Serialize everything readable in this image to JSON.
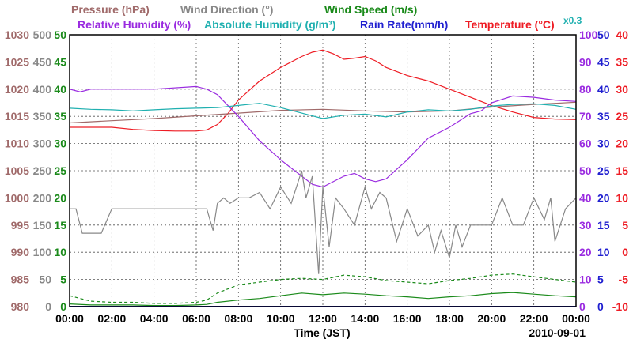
{
  "chart_data": {
    "type": "line",
    "date": "2010-09-01",
    "xlabel": "Time (JST)",
    "x_ticks": [
      "00:00",
      "02:00",
      "04:00",
      "06:00",
      "08:00",
      "10:00",
      "12:00",
      "14:00",
      "16:00",
      "18:00",
      "20:00",
      "22:00",
      "00:00"
    ],
    "x_range_hours": [
      0,
      24
    ],
    "grid": true,
    "axes": [
      {
        "id": "pressure",
        "label": "Pressure (hPa)",
        "color": "#a06a6a",
        "range": [
          980,
          1030
        ],
        "ticks": [
          "1030",
          "1025",
          "1020",
          "1015",
          "1010",
          "1005",
          "1000",
          "995",
          "990",
          "985",
          "980"
        ]
      },
      {
        "id": "wind_direction",
        "label": "Wind Direction (°)",
        "color": "#888888",
        "range": [
          0,
          500
        ],
        "ticks": [
          "500",
          "450",
          "400",
          "350",
          "300",
          "250",
          "200",
          "150",
          "100",
          "50",
          "0"
        ]
      },
      {
        "id": "wind_speed",
        "label": "Wind Speed (m/s)",
        "color": "#1a8a1a",
        "range": [
          0,
          50
        ],
        "ticks": [
          "50",
          "45",
          "40",
          "35",
          "30",
          "25",
          "20",
          "15",
          "10",
          "5",
          "0"
        ]
      },
      {
        "id": "relative_humidity",
        "label": "Relative Humidity (%)",
        "color": "#9a2be0",
        "range": [
          0,
          100
        ],
        "ticks": [
          "100",
          "90",
          "80",
          "70",
          "60",
          "50",
          "40",
          "30",
          "20",
          "10",
          "0"
        ]
      },
      {
        "id": "absolute_humidity",
        "label": "Absolute Humidity (g/m³)",
        "color": "#20b0b0",
        "scale_note": "x0.3",
        "range": [
          0,
          50
        ],
        "ticks": [
          "50",
          "45",
          "40",
          "35",
          "30",
          "25",
          "20",
          "15",
          "10",
          "5",
          "0"
        ]
      },
      {
        "id": "rain_rate",
        "label": "Rain Rate(mm/h)",
        "color": "#2020d0",
        "range": [
          0,
          50
        ],
        "ticks": [
          "50",
          "45",
          "40",
          "35",
          "30",
          "25",
          "20",
          "15",
          "10",
          "5",
          "0"
        ]
      },
      {
        "id": "temperature",
        "label": "Temperature (°C)",
        "color": "#ee1c24",
        "range": [
          -10,
          40
        ],
        "ticks": [
          "40",
          "35",
          "30",
          "25",
          "20",
          "15",
          "10",
          "5",
          "0",
          "-5",
          "-10"
        ]
      }
    ],
    "series": [
      {
        "name": "Temperature",
        "axis": "temperature",
        "color": "#ee1c24",
        "x": [
          0,
          1,
          2,
          3,
          4,
          5,
          6,
          6.5,
          7,
          7.5,
          8,
          9,
          10,
          11,
          11.5,
          12,
          12.5,
          13,
          13.5,
          14,
          14.5,
          15,
          16,
          17,
          18,
          19,
          20,
          21,
          22,
          23,
          24
        ],
        "y": [
          23,
          23,
          23,
          22.6,
          22.4,
          22.3,
          22.3,
          22.5,
          23.5,
          25.5,
          28,
          31.5,
          34,
          36,
          36.8,
          37.2,
          36.5,
          35.5,
          35.7,
          36,
          35.2,
          34,
          32.5,
          31.5,
          30,
          28.5,
          27,
          25.8,
          24.8,
          24.5,
          24.4
        ]
      },
      {
        "name": "Pressure",
        "axis": "pressure",
        "color": "#a06a6a",
        "x": [
          0,
          2,
          4,
          6,
          8,
          10,
          12,
          14,
          16,
          18,
          20,
          22,
          24
        ],
        "y": [
          1013.8,
          1014.2,
          1014.6,
          1015.1,
          1015.6,
          1016.1,
          1016.3,
          1016.0,
          1015.8,
          1016.0,
          1016.7,
          1017.2,
          1017.6
        ]
      },
      {
        "name": "Relative Humidity",
        "axis": "relative_humidity",
        "color": "#9a2be0",
        "x": [
          0,
          0.5,
          1,
          2,
          4,
          6,
          6.5,
          7,
          8,
          9,
          10,
          10.5,
          11,
          11.5,
          12,
          13,
          13.5,
          14,
          14.5,
          15,
          16,
          17,
          18,
          19,
          19.5,
          20,
          21,
          22,
          23,
          24
        ],
        "y": [
          80,
          79,
          80,
          80,
          80,
          81,
          80,
          78,
          70,
          61,
          54,
          51,
          48,
          45,
          44,
          48,
          49,
          47,
          46,
          47,
          54,
          62,
          66,
          71,
          72,
          75,
          77.5,
          77,
          76,
          75.5
        ]
      },
      {
        "name": "Absolute Humidity",
        "axis": "absolute_humidity",
        "color": "#20b0b0",
        "x": [
          0,
          1,
          2,
          3,
          4,
          5,
          6,
          7,
          8,
          9,
          10,
          11,
          12,
          13,
          14,
          15,
          16,
          17,
          18,
          19,
          20,
          21,
          22,
          23,
          24
        ],
        "y": [
          36.5,
          36.3,
          36.2,
          36.0,
          36.2,
          36.4,
          36.5,
          36.6,
          37.0,
          37.4,
          36.6,
          35.6,
          34.6,
          35.2,
          35.4,
          34.9,
          35.8,
          36.2,
          36.0,
          36.3,
          36.9,
          37.2,
          37.3,
          37.0,
          36.3
        ]
      },
      {
        "name": "Wind Direction",
        "axis": "wind_direction",
        "color": "#888888",
        "x": [
          0,
          0.3,
          0.6,
          1.5,
          2,
          3,
          4,
          5,
          6,
          6.5,
          6.8,
          7,
          7.3,
          7.6,
          8,
          8.5,
          9,
          9.5,
          10,
          10.5,
          11,
          11.2,
          11.5,
          11.8,
          12,
          12.3,
          12.6,
          13,
          13.5,
          14,
          14.3,
          14.7,
          15,
          15.5,
          16,
          16.5,
          17,
          17.3,
          17.6,
          18,
          18.3,
          18.6,
          19,
          19.3,
          19.6,
          20,
          20.5,
          21,
          21.5,
          22,
          22.5,
          22.8,
          23,
          23.5,
          24
        ],
        "y": [
          180,
          180,
          135,
          135,
          180,
          180,
          180,
          180,
          180,
          180,
          140,
          190,
          200,
          190,
          200,
          200,
          210,
          180,
          220,
          190,
          250,
          200,
          240,
          60,
          220,
          110,
          200,
          180,
          150,
          220,
          180,
          210,
          200,
          120,
          180,
          130,
          150,
          100,
          140,
          90,
          150,
          110,
          150,
          150,
          150,
          150,
          200,
          150,
          150,
          200,
          160,
          200,
          120,
          180,
          200
        ]
      },
      {
        "name": "Wind Speed (mean)",
        "axis": "wind_speed",
        "color": "#1a8a1a",
        "x": [
          0,
          1,
          2,
          3,
          4,
          5,
          6,
          6.5,
          7,
          8,
          9,
          10,
          11,
          12,
          13,
          14,
          15,
          16,
          17,
          18,
          19,
          20,
          21,
          22,
          23,
          24
        ],
        "y": [
          0.5,
          0.3,
          0.3,
          0.3,
          0.2,
          0.2,
          0.3,
          0.4,
          0.8,
          1.2,
          1.5,
          2.0,
          2.5,
          2.2,
          2.5,
          2.3,
          2.0,
          1.8,
          1.5,
          1.8,
          2.0,
          2.4,
          2.6,
          2.3,
          2.0,
          1.8
        ]
      },
      {
        "name": "Wind Speed (max)",
        "axis": "wind_speed",
        "color": "#1a8a1a",
        "dashed": true,
        "x": [
          0,
          1,
          2,
          3,
          4,
          5,
          6,
          6.5,
          7,
          8,
          9,
          10,
          11,
          12,
          13,
          14,
          15,
          16,
          17,
          18,
          19,
          20,
          21,
          22,
          23,
          24
        ],
        "y": [
          2.0,
          1.0,
          0.8,
          0.8,
          0.6,
          0.6,
          0.8,
          1.2,
          2.5,
          4.0,
          4.5,
          5.0,
          5.2,
          5.0,
          5.8,
          5.5,
          4.8,
          4.5,
          4.2,
          4.8,
          5.2,
          5.8,
          6.0,
          5.5,
          5.0,
          4.5
        ]
      },
      {
        "name": "Rain Rate",
        "axis": "rain_rate",
        "color": "#2020d0",
        "x": [
          0,
          24
        ],
        "y": [
          0,
          0
        ]
      }
    ]
  }
}
